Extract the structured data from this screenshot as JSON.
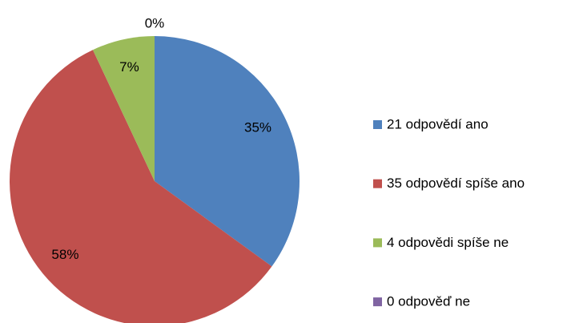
{
  "chart_data": {
    "type": "pie",
    "categories": [
      "21 odpovědí ano",
      "35 odpovědí spíše ano",
      "4 odpovědi spíše ne",
      "0 odpověď ne"
    ],
    "values": [
      35,
      58,
      7,
      0
    ],
    "value_labels": [
      "35%",
      "58%",
      "7%",
      "0%"
    ],
    "colors": [
      "#4f81bd",
      "#c0504d",
      "#9bbb59",
      "#8064a2"
    ],
    "legend": "right"
  }
}
